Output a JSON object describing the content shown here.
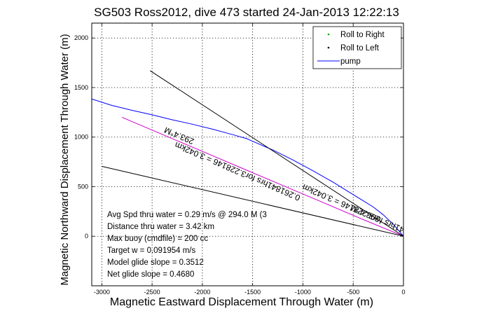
{
  "chart_data": {
    "type": "line",
    "title": "SG503 Ross2012, dive 473 started 24-Jan-2013 12:22:13",
    "xlabel": "Magnetic Eastward Displacement Through Water (m)",
    "ylabel": "Magnetic Northward Displacement Through Water (m)",
    "xlim": [
      -3100,
      0
    ],
    "ylim": [
      -500,
      2150
    ],
    "xticks": [
      -3000,
      -2500,
      -2000,
      -1500,
      -1000,
      -500,
      0
    ],
    "yticks": [
      0,
      500,
      1000,
      1500,
      2000
    ],
    "grid": true,
    "legend_position": "top-right",
    "legend": [
      {
        "label": "Roll to Right",
        "color": "#00aa00",
        "marker": "dot"
      },
      {
        "label": "Roll to Left",
        "color": "#000000",
        "marker": "dot"
      },
      {
        "label": "pump",
        "color": "#0000ff",
        "marker": "line"
      }
    ],
    "series": [
      {
        "name": "pump",
        "color": "#0000ff",
        "x": [
          -3100,
          -2900,
          -2700,
          -2500,
          -2300,
          -2100,
          -1900,
          -1700,
          -1560,
          -1500,
          -1300,
          -1100,
          -900,
          -700,
          -500,
          -300,
          -200,
          -100,
          0
        ],
        "y": [
          1385,
          1320,
          1270,
          1225,
          1175,
          1130,
          1080,
          1025,
          985,
          958,
          870,
          770,
          660,
          545,
          420,
          295,
          215,
          120,
          0
        ]
      },
      {
        "name": "",
        "color": "#cc00cc",
        "x": [
          -2800,
          -2400,
          -2000,
          -1600,
          -1200,
          -800,
          -400,
          0
        ],
        "y": [
          1200,
          1028,
          856,
          684,
          512,
          340,
          168,
          0
        ]
      },
      {
        "name": "",
        "color": "#000000",
        "x": [
          -2520,
          0
        ],
        "y": [
          1670,
          0
        ]
      },
      {
        "name": "",
        "color": "#000000",
        "x": [
          -3000,
          0
        ],
        "y": [
          705,
          0
        ]
      }
    ],
    "annotations": [
      {
        "text": "293.4°M",
        "x": -2220,
        "y": 1040,
        "rotation_deg": 23.4
      },
      {
        "text": "0.261841hrs for3.228146 = 3.042km",
        "x": -1640,
        "y": 680,
        "rotation_deg": 23.4
      },
      {
        "text": "293.4°M",
        "x": -370,
        "y": 255,
        "rotation_deg": 23.4
      },
      {
        "text": "0.261841hrs for3.228146 = 3.042km",
        "x": -370,
        "y": 255,
        "rotation_deg": 23.4
      }
    ],
    "stats": [
      "Avg Spd thru water =  0.29 m/s @ 294.0    M (3",
      "Distance thru water =  3.42 km",
      "Max buoy (cmdfile) = 200 cc",
      "Target w = 0.091954 m/s",
      "Model glide slope = 0.3512",
      "Net glide slope = 0.4680"
    ]
  }
}
